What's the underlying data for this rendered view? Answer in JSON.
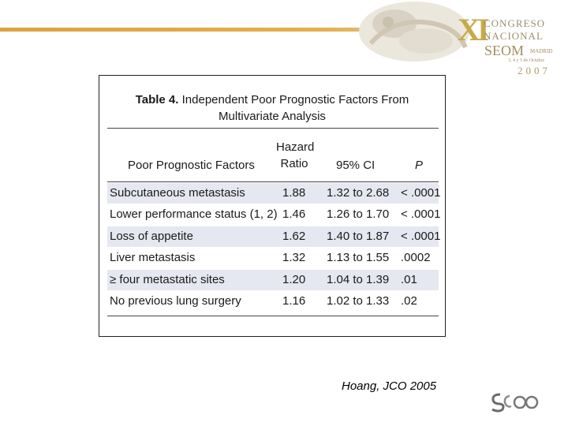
{
  "header": {
    "logo": {
      "roman": "XI",
      "line1": "CONGRESO",
      "line2": "NACIONAL",
      "org": "SEOM",
      "city": "MADRID",
      "dates": "3, 4 y 5 de Octubre",
      "year": "2007"
    }
  },
  "table": {
    "title_bold": "Table 4.",
    "title_rest": "Independent Poor Prognostic Factors From",
    "title_line2": "Multivariate Analysis",
    "columns": {
      "factor": "Poor Prognostic Factors",
      "hr_line1": "Hazard",
      "hr_line2": "Ratio",
      "ci": "95% CI",
      "p": "P"
    },
    "rows": [
      {
        "factor": "Subcutaneous metastasis",
        "hr": "1.88",
        "ci": "1.32 to 2.68",
        "p": "< .0001"
      },
      {
        "factor": "Lower performance status (1, 2)",
        "hr": "1.46",
        "ci": "1.26 to 1.70",
        "p": "< .0001"
      },
      {
        "factor": "Loss of appetite",
        "hr": "1.62",
        "ci": "1.40 to 1.87",
        "p": "< .0001"
      },
      {
        "factor": "Liver metastasis",
        "hr": "1.32",
        "ci": "1.13 to 1.55",
        "p": ".0002"
      },
      {
        "factor": "≥ four metastatic sites",
        "hr": "1.20",
        "ci": "1.04 to 1.39",
        "p": ".01"
      },
      {
        "factor": "No previous lung surgery",
        "hr": "1.16",
        "ci": "1.02 to 1.33",
        "p": ".02"
      }
    ]
  },
  "citation": "Hoang, JCO 2005",
  "colors": {
    "accent": "#d9a441",
    "shade": "#e5e8f1"
  }
}
